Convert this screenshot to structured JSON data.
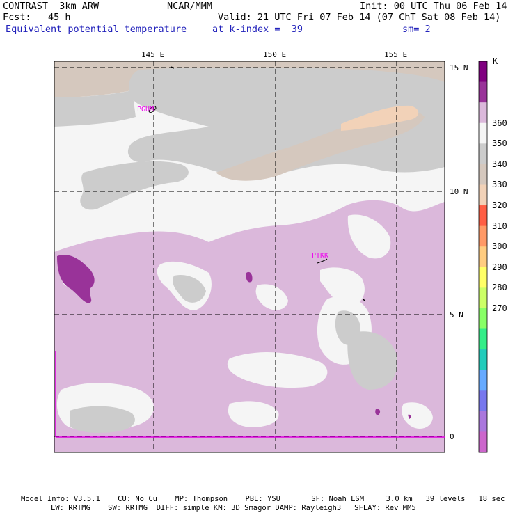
{
  "header": {
    "model": "CONTRAST  3km ARW",
    "org": "NCAR/MMM",
    "init": "Init: 00 UTC Thu 06 Feb 14",
    "forecast": "Fcst:   45 h",
    "valid": "Valid: 21 UTC Fri 07 Feb 14 (07 ChT Sat 08 Feb 14)",
    "field": "Equivalent potential temperature",
    "level": "at k-index =  39",
    "smoothing": "sm= 2"
  },
  "map": {
    "lon_labels": [
      "145 E",
      "150 E",
      "155 E"
    ],
    "lat_labels": [
      "15 N",
      "10 N",
      "5 N",
      "0"
    ],
    "stations": [
      "PGUM",
      "PTKK"
    ]
  },
  "colorbar": {
    "unit": "K",
    "tick_labels": [
      "360",
      "350",
      "340",
      "330",
      "320",
      "310",
      "300",
      "290",
      "280",
      "270"
    ],
    "colors": [
      "#800080",
      "#993399",
      "#dbb8db",
      "#f5f5f5",
      "#cccccc",
      "#d5c8be",
      "#f2d2b8",
      "#ff5e44",
      "#ff9966",
      "#ffcc80",
      "#ffff66",
      "#ccff66",
      "#88ff66",
      "#33ee88",
      "#22ccbb",
      "#66aaff",
      "#7777ee",
      "#aa77dd",
      "#cc66cc"
    ]
  },
  "footer": {
    "line1": "Model Info: V3.5.1    CU: No Cu    MP: Thompson    PBL: YSU       SF: Noah LSM     3.0 km   39 levels   18 sec",
    "line2": "LW: RRTMG    SW: RRTMG  DIFF: simple KM: 3D Smagor DAMP: Rayleigh3   SFLAY: Rev MM5"
  }
}
